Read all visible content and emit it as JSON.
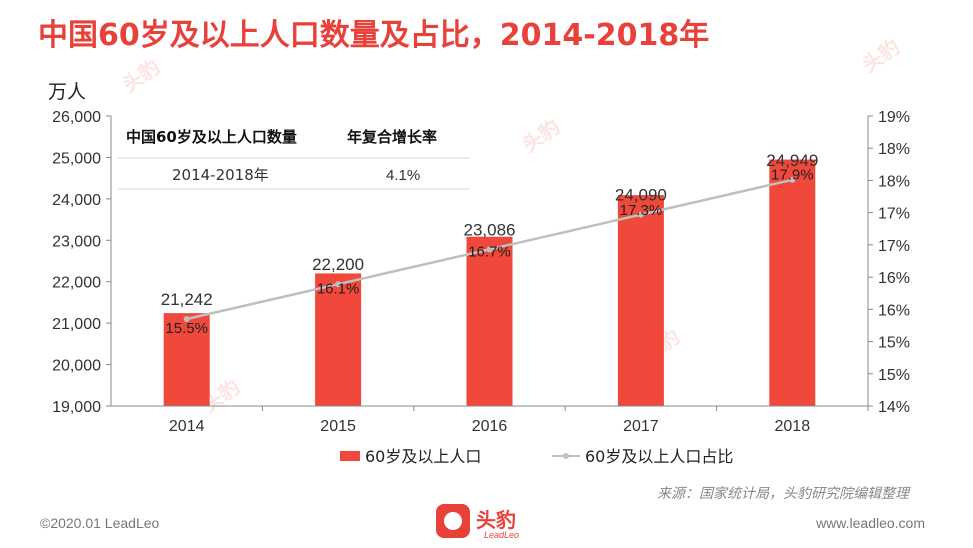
{
  "title": "中国60岁及以上人口数量及占比，2014-2018年",
  "source": "来源：国家统计局，头豹研究院编辑整理",
  "footer_left": "©2020.01 LeadLeo",
  "footer_right": "www.leadleo.com",
  "logo": {
    "text": "头豹",
    "sub": "LeadLeo"
  },
  "colors": {
    "bar": "#f0493b",
    "line": "#bfbfbf",
    "title": "#e8413a"
  },
  "chart_data": {
    "type": "bar",
    "categories": [
      "2014",
      "2015",
      "2016",
      "2017",
      "2018"
    ],
    "series": [
      {
        "name": "60岁及以上人口",
        "type": "bar",
        "axis": "left",
        "values": [
          21242,
          22200,
          23086,
          24090,
          24949
        ],
        "value_labels": [
          "21,242",
          "22,200",
          "23,086",
          "24,090",
          "24,949"
        ]
      },
      {
        "name": "60岁及以上人口占比",
        "type": "line",
        "axis": "right",
        "values": [
          15.5,
          16.1,
          16.7,
          17.3,
          17.9
        ],
        "value_labels": [
          "15.5%",
          "16.1%",
          "16.7%",
          "17.3%",
          "17.9%"
        ]
      }
    ],
    "left_axis": {
      "unit": "万人",
      "ylim": [
        19000,
        26000
      ],
      "ticks": [
        "19,000",
        "20,000",
        "21,000",
        "22,000",
        "23,000",
        "24,000",
        "25,000",
        "26,000"
      ]
    },
    "right_axis": {
      "ylim": [
        14,
        19
      ],
      "ticks": [
        "14%",
        "15%",
        "15%",
        "16%",
        "16%",
        "17%",
        "17%",
        "18%",
        "18%",
        "19%"
      ]
    },
    "legend": {
      "position": "bottom",
      "items": [
        "60岁及以上人口",
        "60岁及以上人口占比"
      ]
    },
    "table": {
      "headers": [
        "中国60岁及以上人口数量",
        "年复合增长率"
      ],
      "row": [
        "2014-2018年",
        "4.1%"
      ]
    }
  }
}
